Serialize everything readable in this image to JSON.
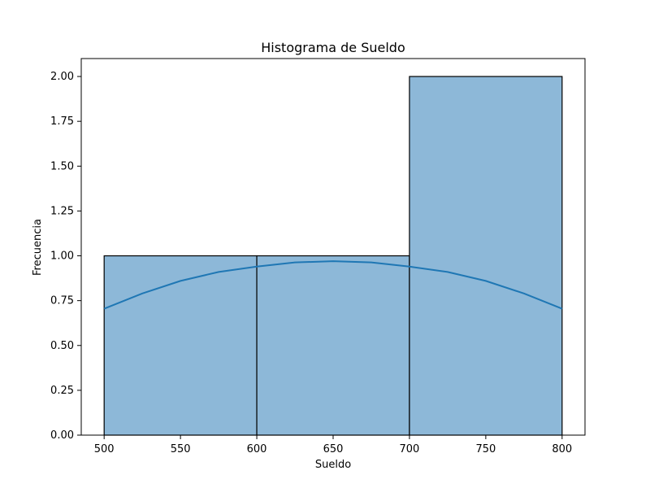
{
  "chart_data": {
    "type": "histogram",
    "title": "Histograma de Sueldo",
    "xlabel": "Sueldo",
    "ylabel": "Frecuencia",
    "xlim": [
      485,
      815
    ],
    "ylim": [
      0,
      2.1
    ],
    "x_ticks": [
      500,
      550,
      600,
      650,
      700,
      750,
      800
    ],
    "x_tick_labels": [
      "500",
      "550",
      "600",
      "650",
      "700",
      "750",
      "800"
    ],
    "y_ticks": [
      0,
      0.25,
      0.5,
      0.75,
      1.0,
      1.25,
      1.5,
      1.75,
      2.0
    ],
    "y_tick_labels": [
      "0.00",
      "0.25",
      "0.50",
      "0.75",
      "1.00",
      "1.25",
      "1.50",
      "1.75",
      "2.00"
    ],
    "bins": [
      {
        "x0": 500,
        "x1": 600,
        "count": 1
      },
      {
        "x0": 600,
        "x1": 700,
        "count": 1
      },
      {
        "x0": 700,
        "x1": 800,
        "count": 2
      }
    ],
    "kde_curve": {
      "name": "KDE",
      "x": [
        500,
        525,
        550,
        575,
        600,
        625,
        650,
        675,
        700,
        725,
        750,
        775,
        800
      ],
      "y": [
        0.705,
        0.79,
        0.86,
        0.91,
        0.94,
        0.963,
        0.97,
        0.963,
        0.94,
        0.91,
        0.86,
        0.79,
        0.705
      ]
    },
    "grid": false,
    "colors": {
      "bar_fill": "#8DB8D8",
      "bar_edge": "#000000",
      "kde_line": "#1F77B4",
      "axis": "#000000"
    }
  }
}
